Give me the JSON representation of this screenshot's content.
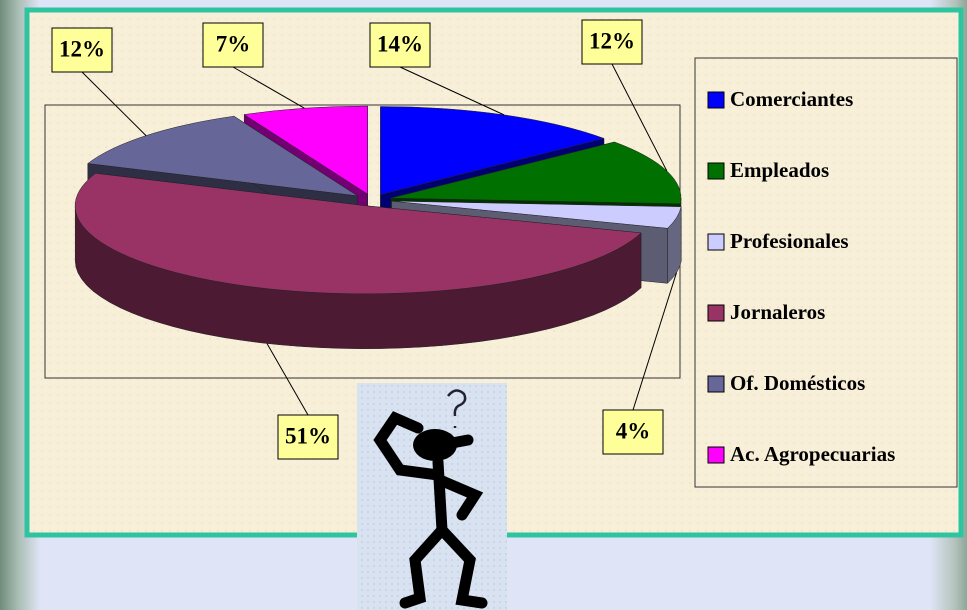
{
  "chart_data": {
    "type": "pie",
    "categories": [
      "Comerciantes",
      "Empleados",
      "Profesionales",
      "Jornaleros",
      "Of. Domésticos",
      "Ac. Agropecuarias"
    ],
    "values": [
      14,
      12,
      4,
      51,
      12,
      7
    ],
    "value_labels": [
      "14%",
      "12%",
      "4%",
      "51%",
      "12%",
      "7%"
    ],
    "colors": [
      "#0000ff",
      "#007000",
      "#ccccff",
      "#993366",
      "#666699",
      "#ff00ff"
    ],
    "legend": "right"
  }
}
